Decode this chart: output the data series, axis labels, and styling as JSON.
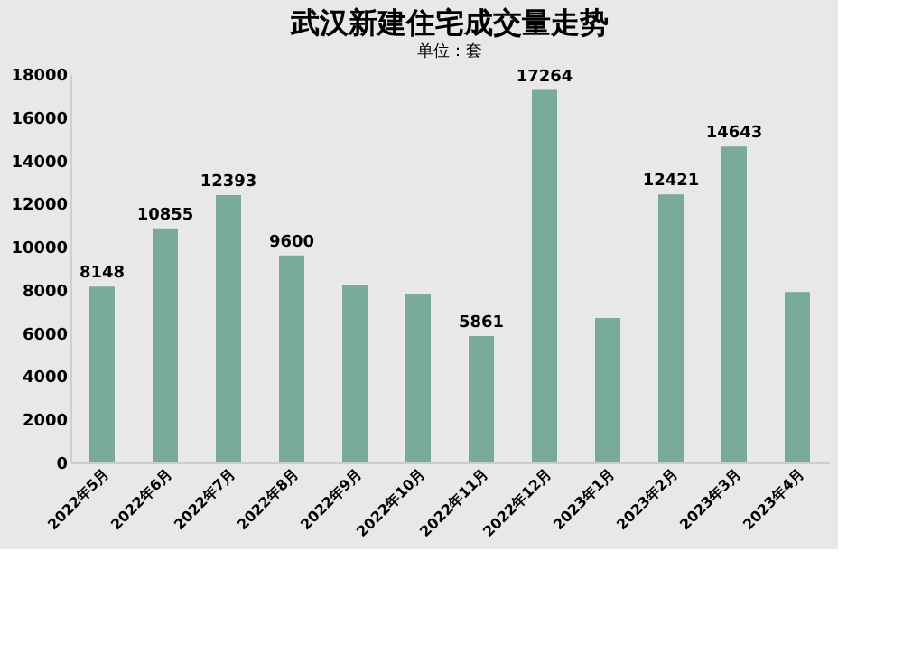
{
  "chart_data": {
    "type": "bar",
    "title": "武汉新建住宅成交量走势",
    "subtitle": "单位：套",
    "categories": [
      "2022年5月",
      "2022年6月",
      "2022年7月",
      "2022年8月",
      "2022年9月",
      "2022年10月",
      "2022年11月",
      "2022年12月",
      "2023年1月",
      "2023年2月",
      "2023年3月",
      "2023年4月"
    ],
    "values": [
      8148,
      10855,
      12393,
      9600,
      8200,
      7800,
      5861,
      17264,
      6700,
      12421,
      14643,
      7900
    ],
    "value_labels": [
      "8148",
      "10855",
      "12393",
      "9600",
      null,
      null,
      "5861",
      "17264",
      null,
      "12421",
      "14643",
      null
    ],
    "color": "#7aaa98",
    "ylim": [
      0,
      18000
    ],
    "yticks": [
      0,
      2000,
      4000,
      6000,
      8000,
      10000,
      12000,
      14000,
      16000,
      18000
    ],
    "grid": false
  }
}
